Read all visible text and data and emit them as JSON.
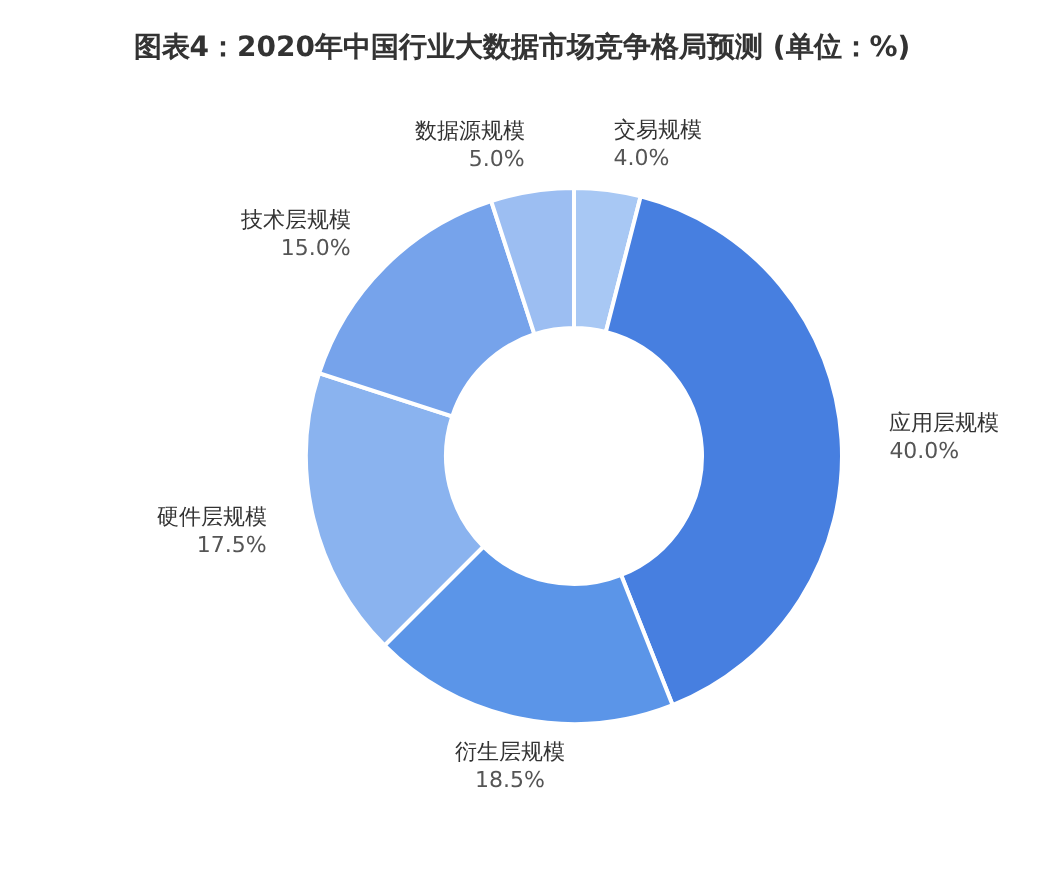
{
  "chart_data": {
    "type": "donut",
    "title": "图表4：2020年中国行业大数据市场竞争格局预测 (单位：%)",
    "categories": [
      "交易规模",
      "应用层规模",
      "衍生层规模",
      "硬件层规模",
      "技术层规模",
      "数据源规模"
    ],
    "values": [
      4.0,
      40.0,
      18.5,
      17.5,
      15.0,
      5.0
    ],
    "value_labels": [
      "4.0%",
      "40.0%",
      "18.5%",
      "17.5%",
      "15.0%",
      "5.0%"
    ],
    "colors": [
      "#a8c8f4",
      "#477fe0",
      "#5b95e8",
      "#8ab3ef",
      "#76a3eb",
      "#9cbef2"
    ],
    "legend": false
  }
}
